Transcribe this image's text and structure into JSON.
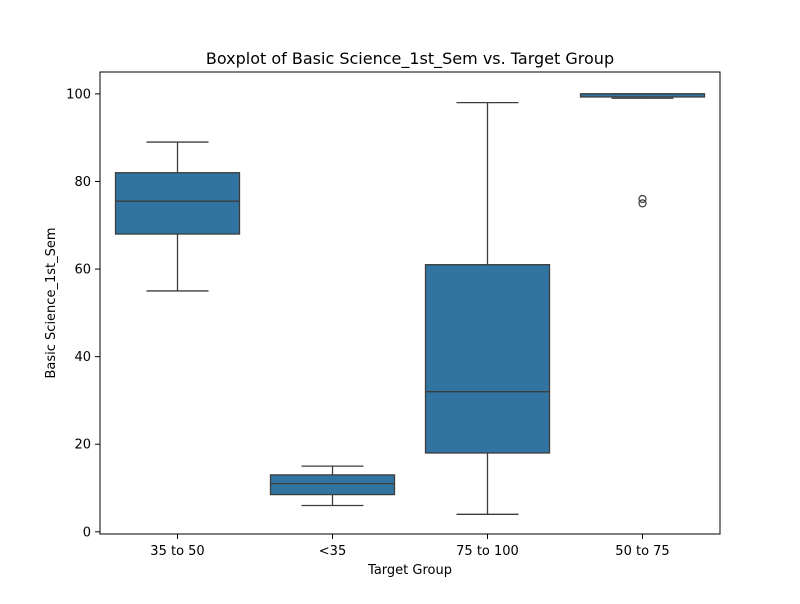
{
  "chart_data": {
    "type": "box",
    "title": "Boxplot of Basic Science_1st_Sem vs. Target Group",
    "xlabel": "Target Group",
    "ylabel": "Basic Science_1st_Sem",
    "ylim": [
      -0.5,
      105
    ],
    "yticks": [
      0,
      20,
      40,
      60,
      80,
      100
    ],
    "grid": false,
    "categories": [
      "35 to 50",
      "<35",
      "75 to 100",
      "50 to 75"
    ],
    "boxes": [
      {
        "category": "35 to 50",
        "whisker_low": 55,
        "q1": 68,
        "median": 75.5,
        "q3": 82,
        "whisker_high": 89,
        "outliers": []
      },
      {
        "category": "<35",
        "whisker_low": 6,
        "q1": 8.5,
        "median": 11,
        "q3": 13,
        "whisker_high": 15,
        "outliers": []
      },
      {
        "category": "75 to 100",
        "whisker_low": 4,
        "q1": 18,
        "median": 32,
        "q3": 61,
        "whisker_high": 98,
        "outliers": []
      },
      {
        "category": "50 to 75",
        "whisker_low": 99,
        "q1": 99.3,
        "median": 100,
        "q3": 100,
        "whisker_high": 100,
        "outliers": [
          75,
          76
        ]
      }
    ],
    "box_color": "#3274a1",
    "line_color": "#3d3d3d"
  }
}
